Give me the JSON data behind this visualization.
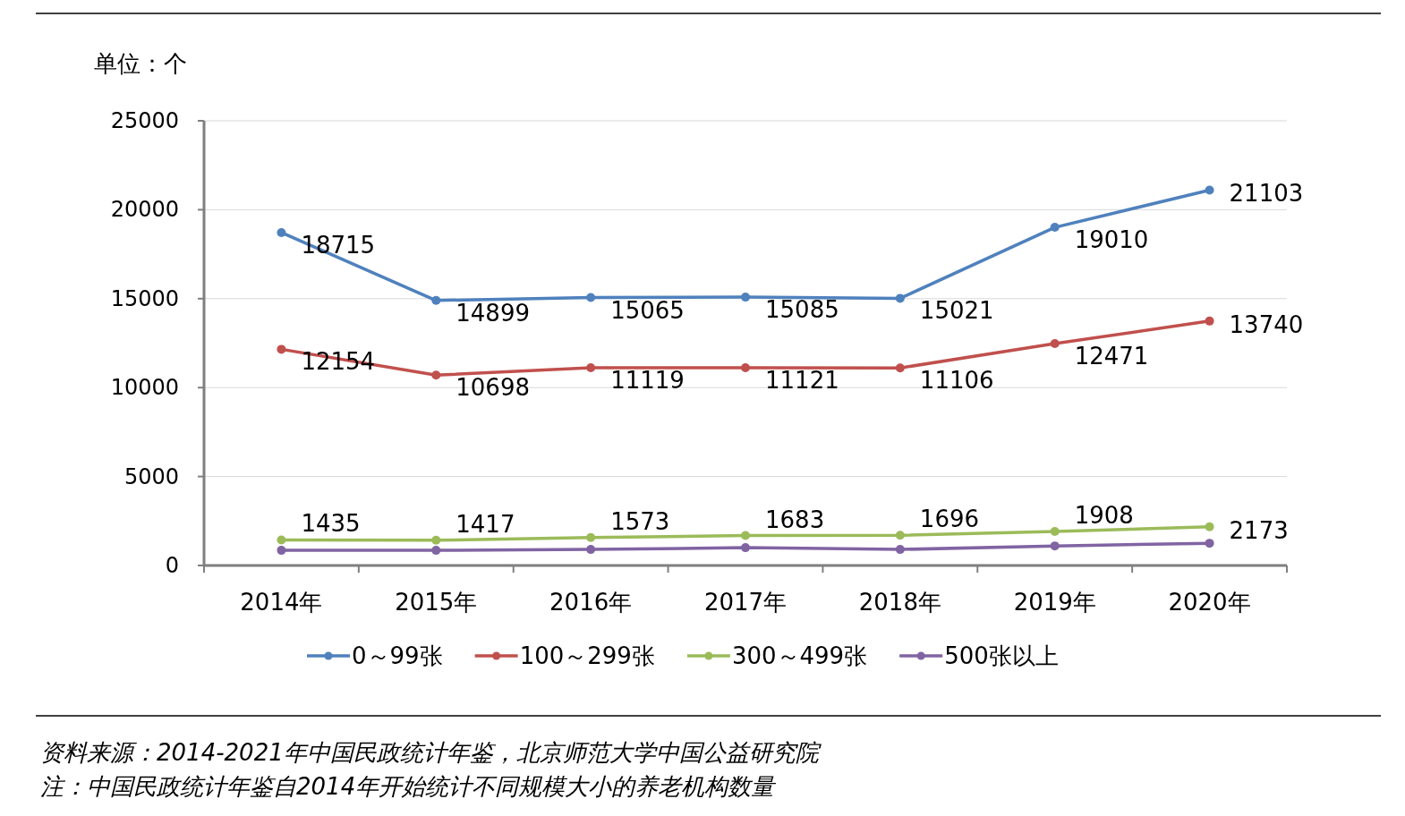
{
  "chart_data": {
    "type": "line",
    "ylabel": "单位：个",
    "categories": [
      "2014年",
      "2015年",
      "2016年",
      "2017年",
      "2018年",
      "2019年",
      "2020年"
    ],
    "series": [
      {
        "name": "0～99张",
        "color": "#4f81bd",
        "values": [
          18715,
          14899,
          15065,
          15085,
          15021,
          19010,
          21103
        ],
        "value_labels": [
          "18715",
          "14899",
          "15065",
          "15085",
          "15021",
          "19010",
          "21103"
        ]
      },
      {
        "name": "100～299张",
        "color": "#c0504d",
        "values": [
          12154,
          10698,
          11119,
          11121,
          11106,
          12471,
          13740
        ],
        "value_labels": [
          "12154",
          "10698",
          "11119",
          "11121",
          "11106",
          "12471",
          "13740"
        ]
      },
      {
        "name": "300～499张",
        "color": "#9bbb59",
        "values": [
          1435,
          1417,
          1573,
          1683,
          1696,
          1908,
          2173
        ],
        "value_labels": [
          "1435",
          "1417",
          "1573",
          "1683",
          "1696",
          "1908",
          "2173"
        ]
      },
      {
        "name": "500张以上",
        "color": "#8064a2",
        "values": [
          850,
          850,
          900,
          1000,
          900,
          1100,
          1250
        ]
      }
    ],
    "ylim": [
      0,
      25000
    ],
    "yticks": [
      0,
      5000,
      10000,
      15000,
      20000,
      25000
    ],
    "grid": "y",
    "legend": "bottom",
    "marker": "circle",
    "line_style": "solid",
    "annotations": [
      "资料来源：2014-2021年中国民政统计年鉴，北京师范大学中国公益研究院",
      "注：中国民政统计年鉴自2014年开始统计不同规模大小的养老机构数量"
    ]
  }
}
